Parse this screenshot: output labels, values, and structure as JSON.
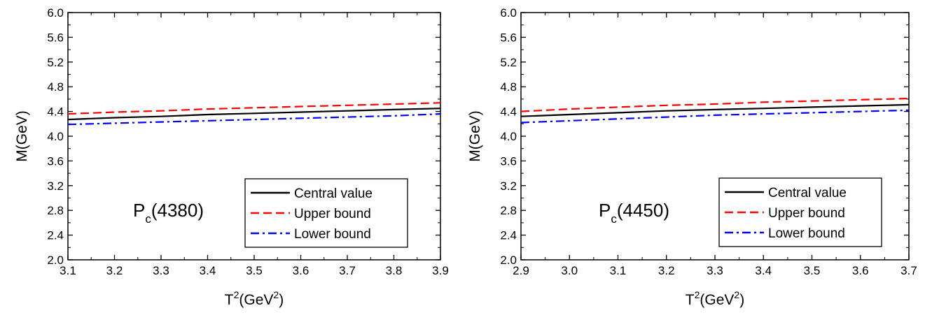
{
  "chart_data": [
    {
      "type": "line",
      "annotation": {
        "main": "P",
        "sub": "c",
        "tail": "(4380)"
      },
      "xlabel": {
        "main": "T",
        "sup1": "2",
        "mid": "(GeV",
        "sup2": "2",
        "tail": ")"
      },
      "ylabel": "M(GeV)",
      "xlim": [
        3.1,
        3.9
      ],
      "ylim": [
        2.0,
        6.0
      ],
      "x_ticks": [
        "3.1",
        "3.2",
        "3.3",
        "3.4",
        "3.5",
        "3.6",
        "3.7",
        "3.8",
        "3.9"
      ],
      "y_ticks": [
        "2.0",
        "2.4",
        "2.8",
        "3.2",
        "3.6",
        "4.0",
        "4.4",
        "4.8",
        "5.2",
        "5.6",
        "6.0"
      ],
      "legend_position": "lower-right",
      "x": [
        3.1,
        3.2,
        3.3,
        3.4,
        3.5,
        3.6,
        3.7,
        3.8,
        3.9
      ],
      "series": [
        {
          "name": "Central value",
          "color": "#000000",
          "style": "solid",
          "values": [
            4.27,
            4.3,
            4.32,
            4.35,
            4.37,
            4.39,
            4.41,
            4.43,
            4.45
          ]
        },
        {
          "name": "Upper bound",
          "color": "#ff0000",
          "style": "dash",
          "values": [
            4.36,
            4.39,
            4.41,
            4.44,
            4.46,
            4.48,
            4.5,
            4.52,
            4.54
          ]
        },
        {
          "name": "Lower bound",
          "color": "#0000ff",
          "style": "dashdot",
          "values": [
            4.19,
            4.21,
            4.23,
            4.25,
            4.27,
            4.29,
            4.31,
            4.33,
            4.36
          ]
        }
      ]
    },
    {
      "type": "line",
      "annotation": {
        "main": "P",
        "sub": "c",
        "tail": "(4450)"
      },
      "xlabel": {
        "main": "T",
        "sup1": "2",
        "mid": "(GeV",
        "sup2": "2",
        "tail": ")"
      },
      "ylabel": "M(GeV)",
      "xlim": [
        2.9,
        3.7
      ],
      "ylim": [
        2.0,
        6.0
      ],
      "x_ticks": [
        "2.9",
        "3.0",
        "3.1",
        "3.2",
        "3.3",
        "3.4",
        "3.5",
        "3.6",
        "3.7"
      ],
      "y_ticks": [
        "2.0",
        "2.4",
        "2.8",
        "3.2",
        "3.6",
        "4.0",
        "4.4",
        "4.8",
        "5.2",
        "5.6",
        "6.0"
      ],
      "legend_position": "lower-right",
      "x": [
        2.9,
        3.0,
        3.1,
        3.2,
        3.3,
        3.4,
        3.5,
        3.6,
        3.7
      ],
      "series": [
        {
          "name": "Central value",
          "color": "#000000",
          "style": "solid",
          "values": [
            4.32,
            4.35,
            4.38,
            4.41,
            4.43,
            4.45,
            4.47,
            4.49,
            4.51
          ]
        },
        {
          "name": "Upper bound",
          "color": "#ff0000",
          "style": "dash",
          "values": [
            4.4,
            4.44,
            4.47,
            4.5,
            4.52,
            4.55,
            4.57,
            4.59,
            4.61
          ]
        },
        {
          "name": "Lower bound",
          "color": "#0000ff",
          "style": "dashdot",
          "values": [
            4.22,
            4.25,
            4.28,
            4.31,
            4.34,
            4.36,
            4.38,
            4.4,
            4.42
          ]
        }
      ]
    }
  ]
}
